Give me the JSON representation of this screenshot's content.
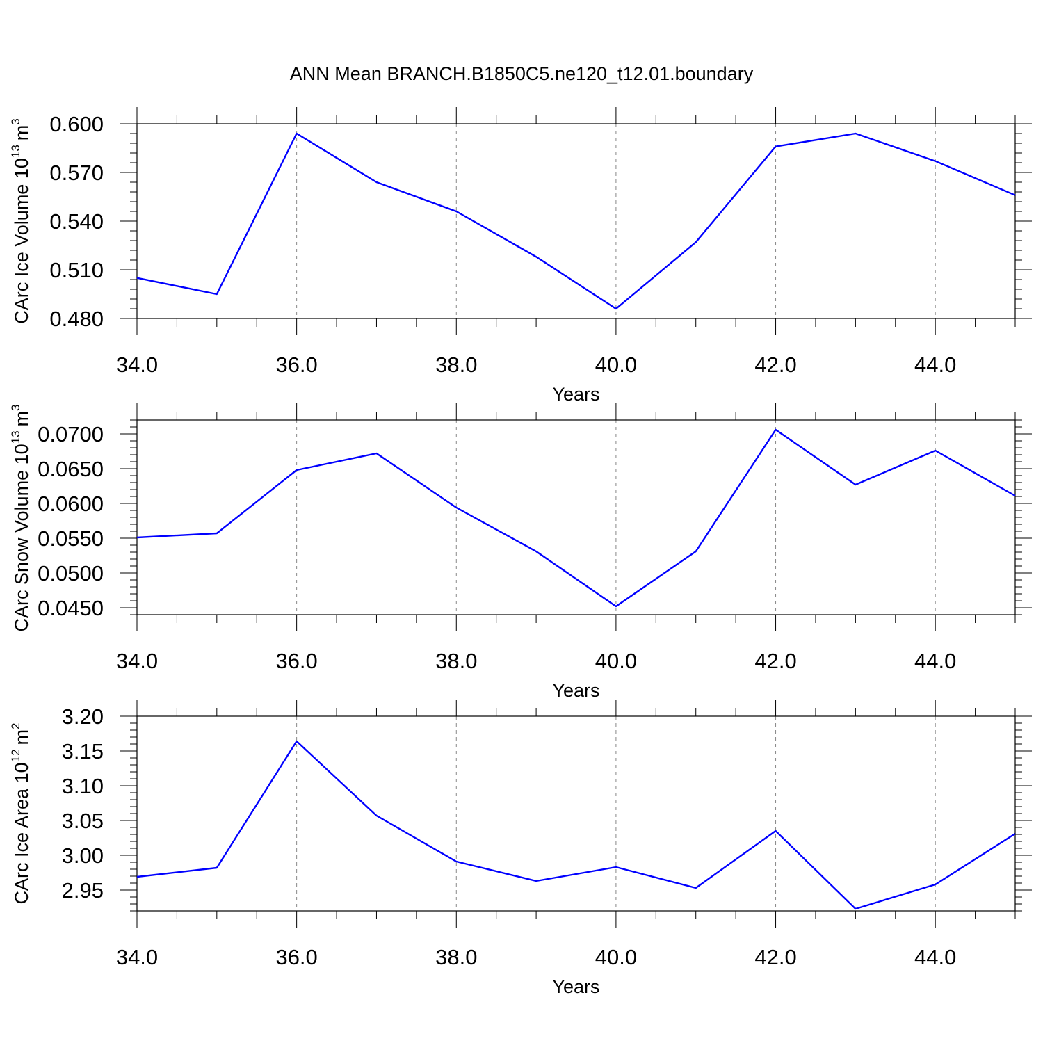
{
  "title": "ANN Mean BRANCH.B1850C5.ne120_t12.01.boundary",
  "colors": {
    "line": "#0000ff",
    "frame": "#000000",
    "grid": "#888888"
  },
  "chart_data": [
    {
      "type": "line",
      "x": [
        34,
        35,
        36,
        37,
        38,
        39,
        40,
        41,
        42,
        43,
        44,
        45
      ],
      "series": [
        {
          "values": [
            0.505,
            0.495,
            0.594,
            0.564,
            0.546,
            0.518,
            0.486,
            0.527,
            0.586,
            0.594,
            0.577,
            0.556
          ]
        }
      ],
      "xlim": [
        34,
        45
      ],
      "ylim": [
        0.48,
        0.6
      ],
      "xticks": [
        "34.0",
        "36.0",
        "38.0",
        "40.0",
        "42.0",
        "44.0"
      ],
      "yticks": [
        "0.480",
        "0.510",
        "0.540",
        "0.570",
        "0.600"
      ],
      "xlabel": "Years",
      "ylabel": "CArc Ice Volume 10",
      "ylabel_exponent": "13",
      "ylabel_unit": "m",
      "ylabel_unit_exponent": "3",
      "grid": "vertical dashed at major x ticks"
    },
    {
      "type": "line",
      "x": [
        34,
        35,
        36,
        37,
        38,
        39,
        40,
        41,
        42,
        43,
        44,
        45
      ],
      "series": [
        {
          "values": [
            0.0551,
            0.0557,
            0.0648,
            0.0672,
            0.0594,
            0.0531,
            0.0452,
            0.0531,
            0.0706,
            0.0627,
            0.0676,
            0.0611
          ]
        }
      ],
      "xlim": [
        34,
        45
      ],
      "ylim": [
        0.044,
        0.072
      ],
      "xticks": [
        "34.0",
        "36.0",
        "38.0",
        "40.0",
        "42.0",
        "44.0"
      ],
      "yticks": [
        "0.0450",
        "0.0500",
        "0.0550",
        "0.0600",
        "0.0650",
        "0.0700"
      ],
      "xlabel": "Years",
      "ylabel": "CArc Snow Volume 10",
      "ylabel_exponent": "13",
      "ylabel_unit": "m",
      "ylabel_unit_exponent": "3",
      "grid": "vertical dashed at major x ticks"
    },
    {
      "type": "line",
      "x": [
        34,
        35,
        36,
        37,
        38,
        39,
        40,
        41,
        42,
        43,
        44,
        45
      ],
      "series": [
        {
          "values": [
            2.969,
            2.982,
            3.164,
            3.057,
            2.991,
            2.963,
            2.983,
            2.953,
            3.035,
            2.923,
            2.958,
            3.031
          ]
        }
      ],
      "xlim": [
        34,
        45
      ],
      "ylim": [
        2.92,
        3.2
      ],
      "xticks": [
        "34.0",
        "36.0",
        "38.0",
        "40.0",
        "42.0",
        "44.0"
      ],
      "yticks": [
        "2.95",
        "3.00",
        "3.05",
        "3.10",
        "3.15",
        "3.20"
      ],
      "xlabel": "Years",
      "ylabel": "CArc Ice Area 10",
      "ylabel_exponent": "12",
      "ylabel_unit": "m",
      "ylabel_unit_exponent": "2",
      "grid": "vertical dashed at major x ticks"
    }
  ]
}
